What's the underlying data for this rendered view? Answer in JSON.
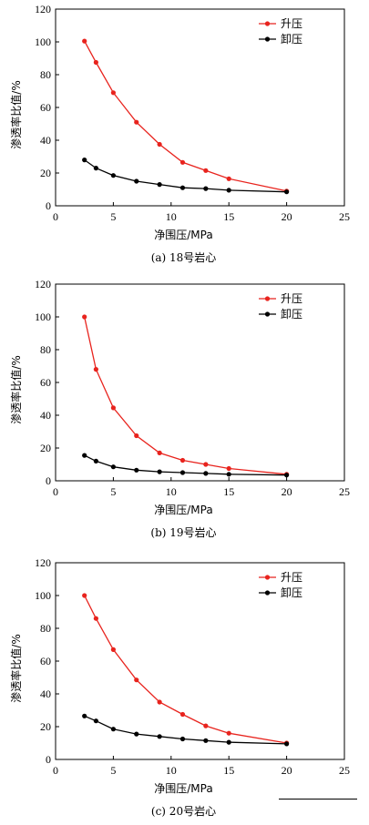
{
  "chart_data": [
    {
      "type": "line",
      "caption": "(a) 18号岩心",
      "xlabel": "净围压/MPa",
      "ylabel": "渗透率比值/%",
      "xlim": [
        0,
        25
      ],
      "ylim": [
        0,
        120
      ],
      "xticks": [
        0,
        5,
        10,
        15,
        20,
        25
      ],
      "yticks": [
        0,
        20,
        40,
        60,
        80,
        100,
        120
      ],
      "legend_position": "top-right",
      "series": [
        {
          "name": "升压",
          "color": "#e8231d",
          "x": [
            2.5,
            3.5,
            5,
            7,
            9,
            11,
            13,
            15,
            20
          ],
          "y": [
            100.5,
            87.5,
            69,
            51,
            37.5,
            26.5,
            21.5,
            16.5,
            9
          ]
        },
        {
          "name": "卸压",
          "color": "#000000",
          "x": [
            2.5,
            3.5,
            5,
            7,
            9,
            11,
            13,
            15,
            20
          ],
          "y": [
            28,
            23,
            18.5,
            15,
            13,
            11,
            10.5,
            9.5,
            8.5
          ]
        }
      ]
    },
    {
      "type": "line",
      "caption": "(b) 19号岩心",
      "xlabel": "净围压/MPa",
      "ylabel": "渗透率比值/%",
      "xlim": [
        0,
        25
      ],
      "ylim": [
        0,
        120
      ],
      "xticks": [
        0,
        5,
        10,
        15,
        20,
        25
      ],
      "yticks": [
        0,
        20,
        40,
        60,
        80,
        100,
        120
      ],
      "legend_position": "top-right",
      "series": [
        {
          "name": "升压",
          "color": "#e8231d",
          "x": [
            2.5,
            3.5,
            5,
            7,
            9,
            11,
            13,
            15,
            20
          ],
          "y": [
            100,
            68,
            44.5,
            27.5,
            17,
            12.5,
            10,
            7.5,
            4
          ]
        },
        {
          "name": "卸压",
          "color": "#000000",
          "x": [
            2.5,
            3.5,
            5,
            7,
            9,
            11,
            13,
            15,
            20
          ],
          "y": [
            15.5,
            12,
            8.5,
            6.5,
            5.5,
            5,
            4.5,
            4,
            3.5
          ]
        }
      ]
    },
    {
      "type": "line",
      "caption": "(c) 20号岩心",
      "xlabel": "净围压/MPa",
      "ylabel": "渗透率比值/%",
      "xlim": [
        0,
        25
      ],
      "ylim": [
        0,
        120
      ],
      "xticks": [
        0,
        5,
        10,
        15,
        20,
        25
      ],
      "yticks": [
        0,
        20,
        40,
        60,
        80,
        100,
        120
      ],
      "legend_position": "top-right",
      "series": [
        {
          "name": "升压",
          "color": "#e8231d",
          "x": [
            2.5,
            3.5,
            5,
            7,
            9,
            11,
            13,
            15,
            20
          ],
          "y": [
            100,
            86,
            67,
            48.5,
            35,
            27.5,
            20.5,
            16,
            10
          ]
        },
        {
          "name": "卸压",
          "color": "#000000",
          "x": [
            2.5,
            3.5,
            5,
            7,
            9,
            11,
            13,
            15,
            20
          ],
          "y": [
            26.5,
            23.5,
            18.5,
            15.5,
            14,
            12.5,
            11.5,
            10.5,
            9.5
          ]
        }
      ]
    }
  ]
}
